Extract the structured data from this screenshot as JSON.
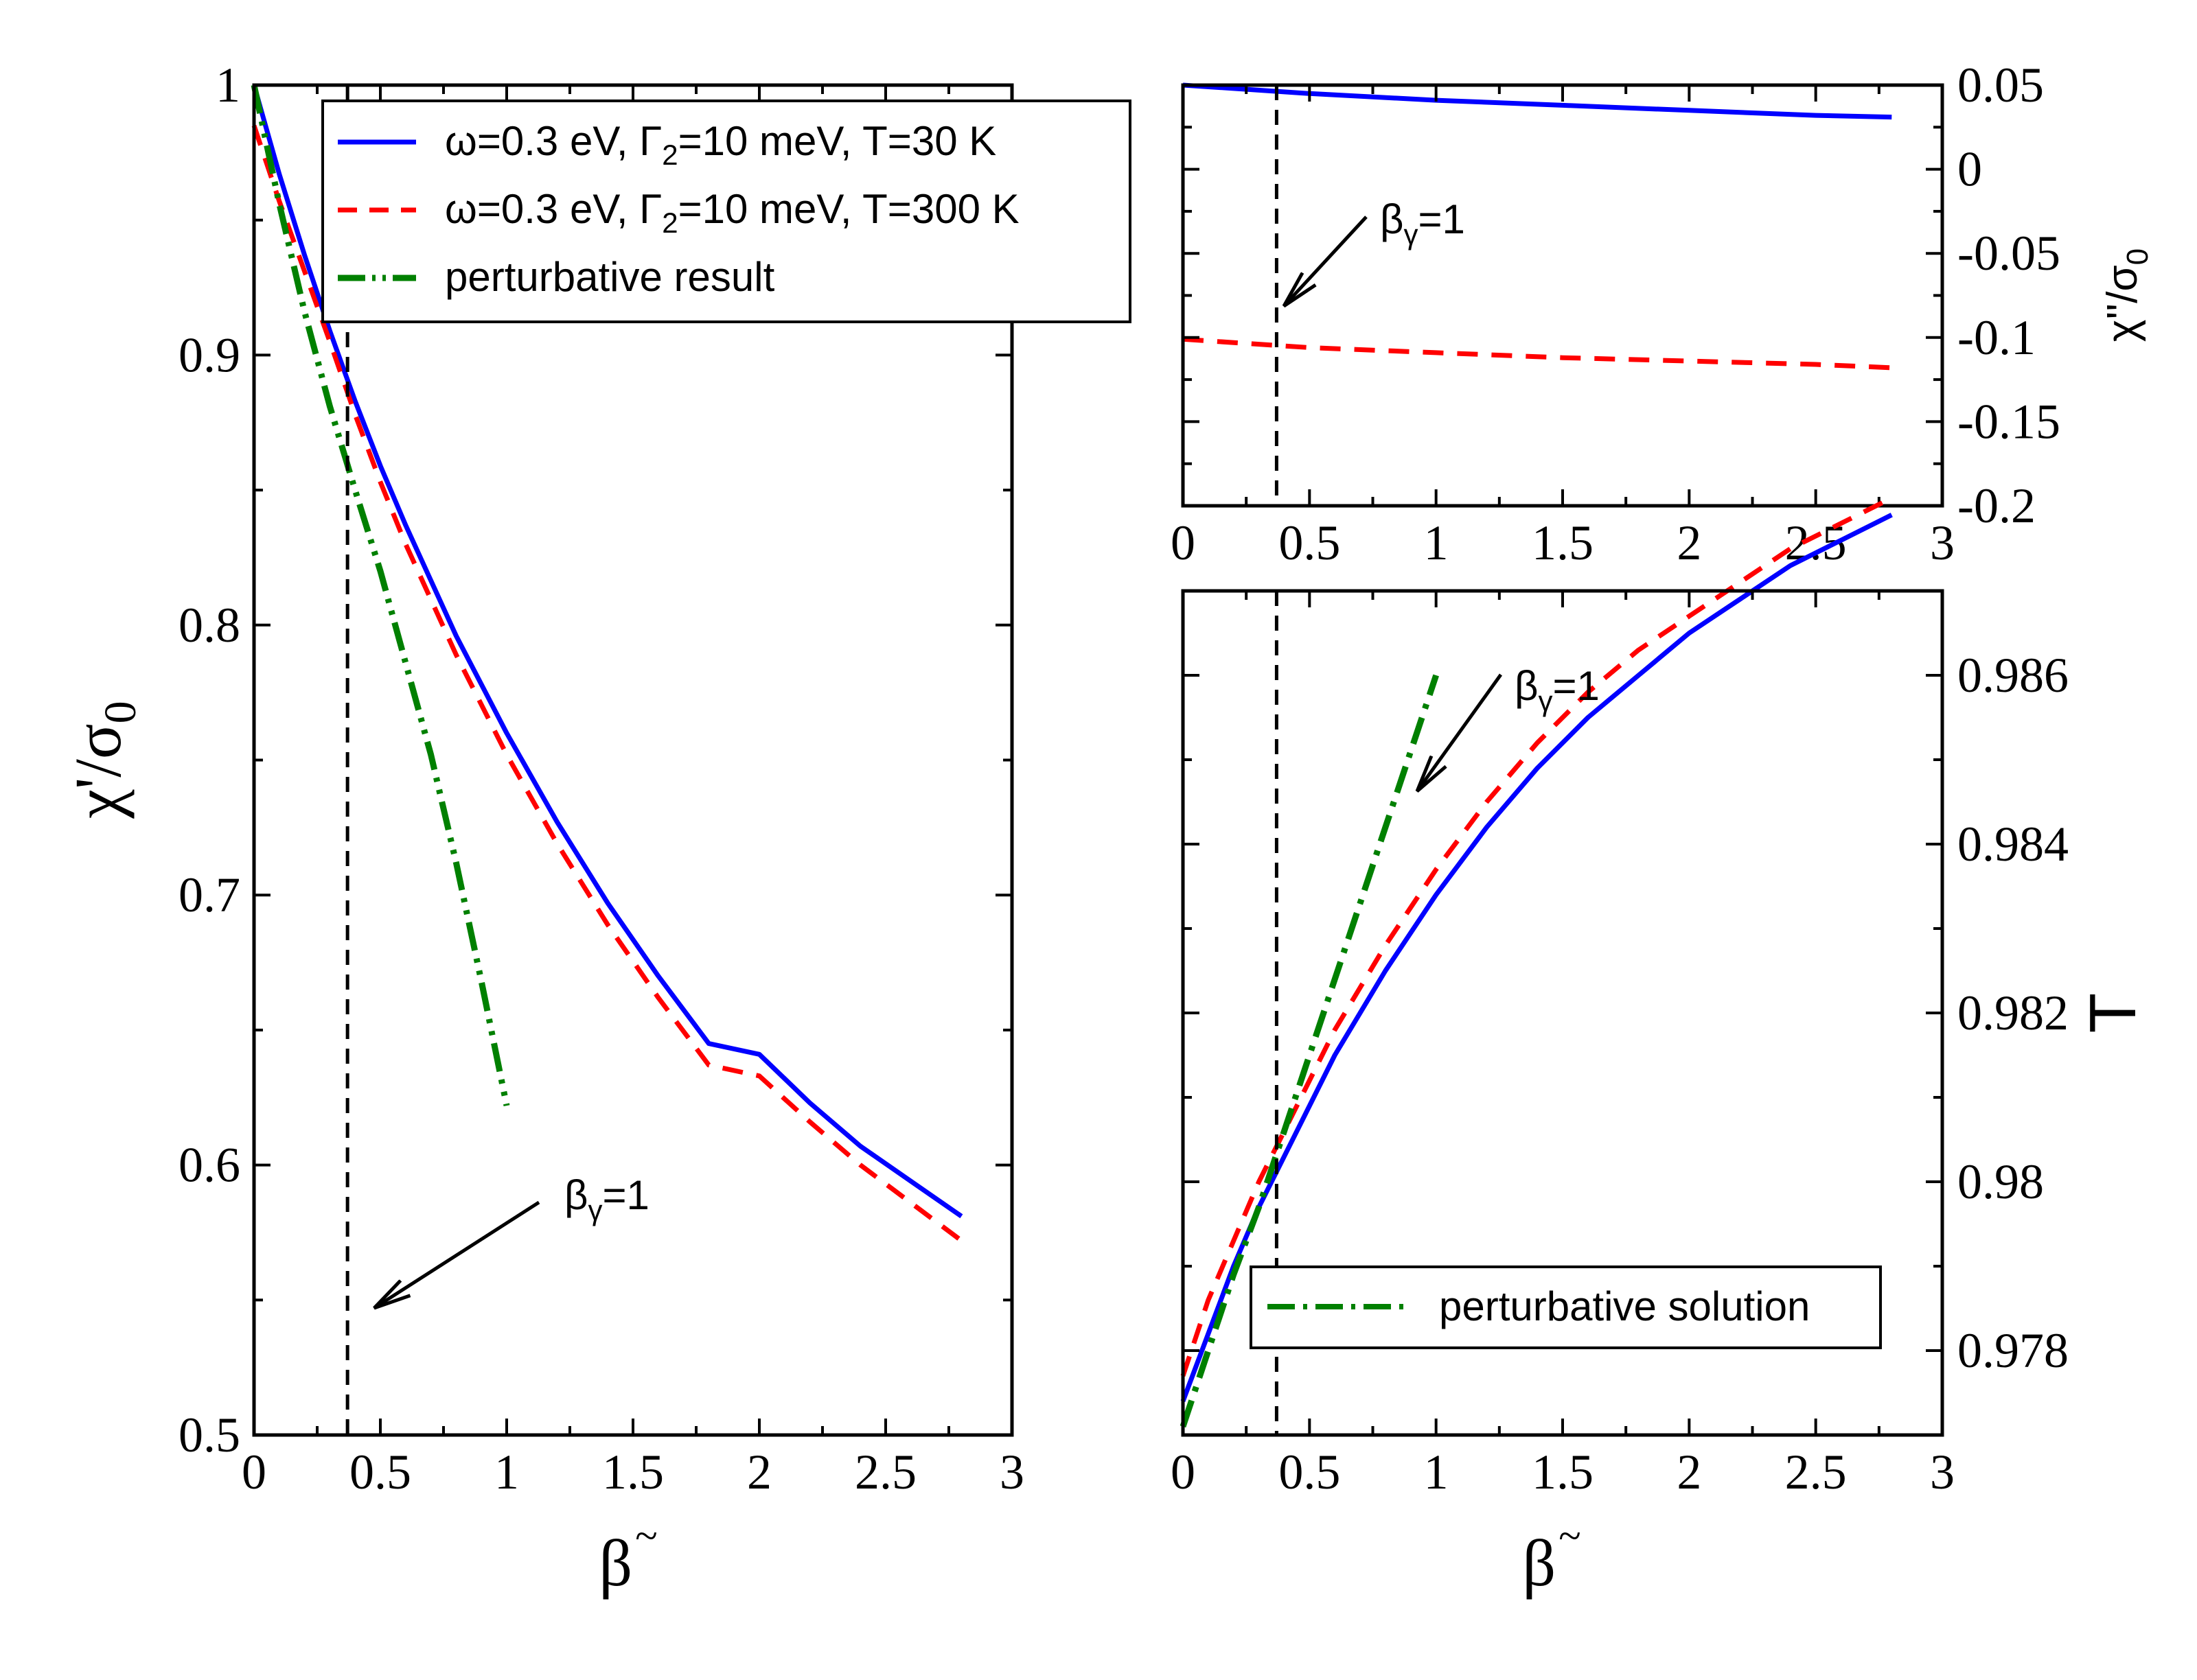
{
  "chart_data": [
    {
      "type": "line",
      "panel": "left",
      "xlabel": "β",
      "xlabel_mark": "~",
      "ylabel": "χ'/σ",
      "ylabel_sub": "0",
      "xlim": [
        0,
        3
      ],
      "ylim": [
        0.5,
        1.0
      ],
      "xticks": [
        0,
        0.5,
        1,
        1.5,
        2,
        2.5,
        3
      ],
      "xtick_labels": [
        "0",
        "0.5",
        "1",
        "1.5",
        "2",
        "2.5",
        "3"
      ],
      "yticks": [
        0.5,
        0.6,
        0.7,
        0.8,
        0.9,
        1.0
      ],
      "ytick_labels": [
        "0.5",
        "0.6",
        "0.7",
        "0.8",
        "0.9",
        "1"
      ],
      "vline_x": 0.37,
      "series": [
        {
          "name": "ω=0.3 eV, Γ2=10 meV, T=30 K",
          "color": "#0000ff",
          "style": "solid",
          "x": [
            0.0,
            0.1,
            0.2,
            0.3,
            0.4,
            0.5,
            0.6,
            0.8,
            1.0,
            1.2,
            1.4,
            1.6,
            1.8,
            2.0,
            2.2,
            2.4,
            2.6,
            2.8
          ],
          "y": [
            1.0,
            0.967,
            0.937,
            0.909,
            0.883,
            0.859,
            0.837,
            0.796,
            0.76,
            0.727,
            0.697,
            0.67,
            0.645,
            0.641,
            0.623,
            0.607,
            0.594,
            0.581
          ]
        },
        {
          "name": "ω=0.3 eV, Γ2=10 meV, T=300 K",
          "color": "#ff0000",
          "style": "dashed",
          "x": [
            0.0,
            0.1,
            0.2,
            0.3,
            0.4,
            0.5,
            0.6,
            0.8,
            1.0,
            1.2,
            1.4,
            1.6,
            1.8,
            2.0,
            2.2,
            2.4,
            2.6,
            2.8
          ],
          "y": [
            0.985,
            0.957,
            0.931,
            0.905,
            0.878,
            0.853,
            0.83,
            0.789,
            0.752,
            0.719,
            0.689,
            0.662,
            0.637,
            0.633,
            0.616,
            0.6,
            0.586,
            0.572
          ]
        },
        {
          "name": "perturbative result",
          "color": "#008000",
          "style": "dashdotdot",
          "x": [
            0.0,
            0.1,
            0.2,
            0.3,
            0.4,
            0.5,
            0.6,
            0.7,
            0.8,
            0.9,
            1.0
          ],
          "y": [
            1.0,
            0.956,
            0.916,
            0.881,
            0.85,
            0.82,
            0.786,
            0.752,
            0.712,
            0.668,
            0.622
          ]
        }
      ],
      "annotation": {
        "text": "β",
        "sub": "γ",
        "suffix": "=1"
      }
    },
    {
      "type": "line",
      "panel": "top-right",
      "ylabel": "χ''/σ",
      "ylabel_sub": "0",
      "xlim": [
        0,
        3
      ],
      "ylim": [
        -0.2,
        0.05
      ],
      "xticks": [
        0,
        0.5,
        1,
        1.5,
        2,
        2.5,
        3
      ],
      "xtick_labels": [
        "0",
        "0.5",
        "1",
        "1.5",
        "2",
        "2.5",
        "3"
      ],
      "yticks": [
        -0.2,
        -0.15,
        -0.1,
        -0.05,
        0,
        0.05
      ],
      "ytick_labels": [
        "-0.2",
        "-0.15",
        "-0.1",
        "-0.05",
        "0",
        "0.05"
      ],
      "vline_x": 0.37,
      "series": [
        {
          "name": "T=30 K",
          "color": "#0000ff",
          "style": "solid",
          "x": [
            0.0,
            0.5,
            1.0,
            1.5,
            2.0,
            2.5,
            2.8
          ],
          "y": [
            0.05,
            0.045,
            0.041,
            0.038,
            0.035,
            0.032,
            0.031
          ]
        },
        {
          "name": "T=300 K",
          "color": "#ff0000",
          "style": "dashed",
          "x": [
            0.0,
            0.5,
            1.0,
            1.5,
            2.0,
            2.5,
            2.8
          ],
          "y": [
            -0.101,
            -0.106,
            -0.109,
            -0.112,
            -0.114,
            -0.116,
            -0.118
          ]
        }
      ],
      "annotation": {
        "text": "β",
        "sub": "γ",
        "suffix": "=1"
      }
    },
    {
      "type": "line",
      "panel": "bottom-right",
      "xlabel": "β",
      "xlabel_mark": "~",
      "ylabel": "T",
      "xlim": [
        0,
        3
      ],
      "ylim": [
        0.977,
        0.987
      ],
      "xticks": [
        0,
        0.5,
        1,
        1.5,
        2,
        2.5,
        3
      ],
      "xtick_labels": [
        "0",
        "0.5",
        "1",
        "1.5",
        "2",
        "2.5",
        "3"
      ],
      "yticks": [
        0.978,
        0.98,
        0.982,
        0.984,
        0.986
      ],
      "ytick_labels": [
        "0.978",
        "0.98",
        "0.982",
        "0.984",
        "0.986"
      ],
      "vline_x": 0.37,
      "series": [
        {
          "name": "T=30 K",
          "color": "#0000ff",
          "style": "solid",
          "x": [
            0.0,
            0.1,
            0.2,
            0.3,
            0.4,
            0.6,
            0.8,
            1.0,
            1.2,
            1.4,
            1.6,
            1.8,
            2.0,
            2.2,
            2.4,
            2.6,
            2.8
          ],
          "y": [
            0.9774,
            0.9782,
            0.979,
            0.9797,
            0.9803,
            0.9815,
            0.9825,
            0.9834,
            0.9842,
            0.9849,
            0.9855,
            0.986,
            0.9865,
            0.9869,
            0.9873,
            0.9876,
            0.9879
          ]
        },
        {
          "name": "T=300 K",
          "color": "#ff0000",
          "style": "dashed",
          "x": [
            0.0,
            0.1,
            0.2,
            0.3,
            0.4,
            0.6,
            0.8,
            1.0,
            1.2,
            1.4,
            1.6,
            1.8,
            2.0,
            2.2,
            2.4,
            2.6,
            2.8
          ],
          "y": [
            0.9777,
            0.9786,
            0.9793,
            0.98,
            0.9806,
            0.9818,
            0.9828,
            0.9837,
            0.9845,
            0.9852,
            0.9858,
            0.9863,
            0.9867,
            0.9871,
            0.9875,
            0.9878,
            0.9881
          ]
        },
        {
          "name": "perturbative solution",
          "color": "#008000",
          "style": "dashdot",
          "x": [
            0.0,
            0.1,
            0.2,
            0.3,
            0.4,
            0.5,
            0.6,
            0.7,
            0.8,
            0.9,
            1.0
          ],
          "y": [
            0.9771,
            0.978,
            0.9789,
            0.9797,
            0.9806,
            0.9815,
            0.9824,
            0.9833,
            0.9842,
            0.9851,
            0.986
          ]
        }
      ],
      "annotation": {
        "text": "β",
        "sub": "γ",
        "suffix": "=1"
      }
    }
  ],
  "legends": {
    "left": [
      {
        "pre": "ω=0.3 eV, Γ",
        "sub": "2",
        "post": "=10 meV, T=30 K"
      },
      {
        "pre": "ω=0.3 eV, Γ",
        "sub": "2",
        "post": "=10 meV, T=300 K"
      },
      {
        "pre": "perturbative result",
        "sub": "",
        "post": ""
      }
    ],
    "bottom_right": [
      {
        "pre": "perturbative solution",
        "sub": "",
        "post": ""
      }
    ]
  }
}
